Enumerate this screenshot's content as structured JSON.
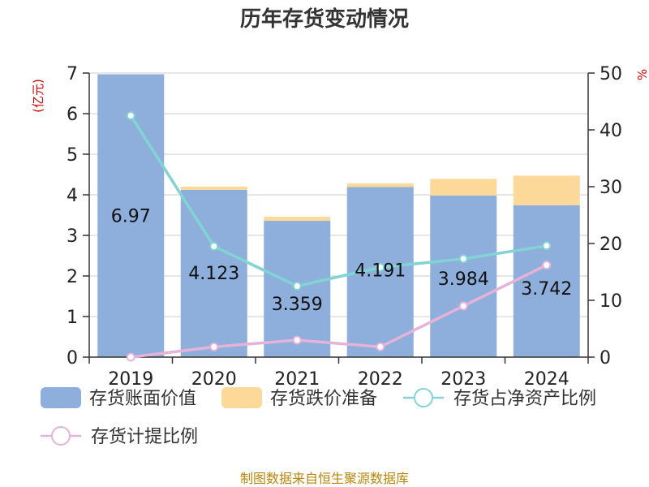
{
  "title": "历年存货变动情况",
  "left_unit": "(亿元)",
  "right_unit": "%",
  "source": "制图数据来自恒生聚源数据库",
  "colors": {
    "book_value": "#8eaedb",
    "provision": "#fdd999",
    "ratio_net_assets": "#82d3d3",
    "provision_ratio": "#e6b3d8"
  },
  "chart_data": {
    "type": "bar",
    "stacked": true,
    "categories": [
      "2019",
      "2020",
      "2021",
      "2022",
      "2023",
      "2024"
    ],
    "ylim": [
      0,
      7
    ],
    "y_ticks": [
      0,
      1,
      2,
      3,
      4,
      5,
      6,
      7
    ],
    "y2lim": [
      0,
      50
    ],
    "y2_ticks": [
      0,
      10,
      20,
      30,
      40,
      50
    ],
    "grid": true,
    "legend_position": "bottom",
    "series": [
      {
        "name": "存货账面价值",
        "type": "bar",
        "axis": "left",
        "values": [
          6.97,
          4.123,
          3.359,
          4.191,
          3.984,
          3.742
        ],
        "labels": [
          "6.97",
          "4.123",
          "3.359",
          "4.191",
          "3.984",
          "3.742"
        ]
      },
      {
        "name": "存货跌价准备",
        "type": "bar",
        "axis": "left",
        "values": [
          0.0,
          0.08,
          0.1,
          0.09,
          0.41,
          0.73
        ]
      },
      {
        "name": "存货占净资产比例",
        "type": "line",
        "axis": "right",
        "values": [
          42.5,
          19.5,
          12.5,
          15.8,
          17.3,
          19.6
        ]
      },
      {
        "name": "存货计提比例",
        "type": "line",
        "axis": "right",
        "values": [
          0.0,
          1.8,
          3.0,
          1.8,
          9.0,
          16.2
        ]
      }
    ]
  }
}
